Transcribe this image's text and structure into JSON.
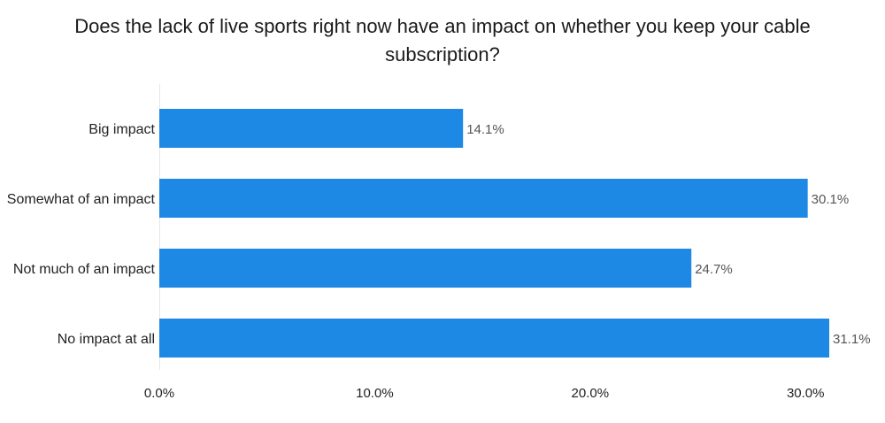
{
  "chart_data": {
    "type": "bar",
    "orientation": "horizontal",
    "title": "Does the lack of live sports right now have an impact on whether you keep your cable subscription?",
    "categories": [
      "Big impact",
      "Somewhat of an impact",
      "Not much of an impact",
      "No impact at all"
    ],
    "values": [
      14.1,
      30.1,
      24.7,
      31.1
    ],
    "value_labels": [
      "14.1%",
      "30.1%",
      "24.7%",
      "31.1%"
    ],
    "xlim": [
      0,
      31.1
    ],
    "x_ticks": [
      0,
      10,
      20,
      30
    ],
    "x_tick_labels": [
      "0.0%",
      "10.0%",
      "20.0%",
      "30.0%"
    ],
    "xlabel": "",
    "ylabel": "",
    "grid": false,
    "bar_color": "#1e88e5"
  }
}
